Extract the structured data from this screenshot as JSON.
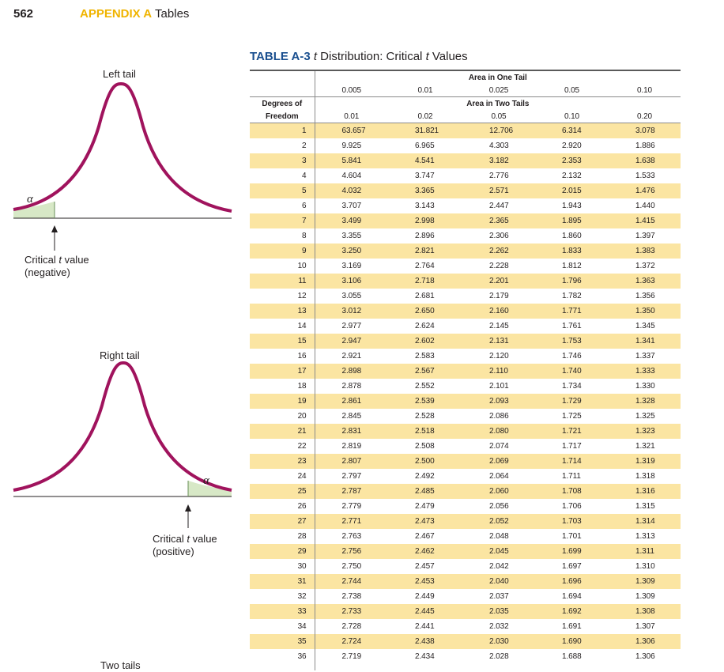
{
  "header": {
    "page_number": "562",
    "appendix_label": "APPENDIX A",
    "appendix_title": "Tables"
  },
  "caption": {
    "label": "TABLE A-3",
    "title_italic": "t",
    "title_rest": " Distribution: Critical ",
    "title_italic2": "t",
    "title_end": " Values"
  },
  "figures": {
    "left": {
      "title": "Left tail",
      "alpha": "α",
      "label_line1_a": "Critical ",
      "label_line1_t": "t",
      "label_line1_b": " value",
      "label_line2": "(negative)"
    },
    "right": {
      "title": "Right tail",
      "alpha": "α",
      "label_line1_a": "Critical ",
      "label_line1_t": "t",
      "label_line1_b": " value",
      "label_line2": "(positive)"
    },
    "two": {
      "title": "Two tails"
    }
  },
  "table": {
    "area_one_tail_label": "Area in One Tail",
    "area_two_tails_label": "Area in Two Tails",
    "df_label_line1": "Degrees of",
    "df_label_line2": "Freedom",
    "one_tail": [
      "0.005",
      "0.01",
      "0.025",
      "0.05",
      "0.10"
    ],
    "two_tails": [
      "0.01",
      "0.02",
      "0.05",
      "0.10",
      "0.20"
    ],
    "rows": [
      [
        "1",
        "63.657",
        "31.821",
        "12.706",
        "6.314",
        "3.078"
      ],
      [
        "2",
        "9.925",
        "6.965",
        "4.303",
        "2.920",
        "1.886"
      ],
      [
        "3",
        "5.841",
        "4.541",
        "3.182",
        "2.353",
        "1.638"
      ],
      [
        "4",
        "4.604",
        "3.747",
        "2.776",
        "2.132",
        "1.533"
      ],
      [
        "5",
        "4.032",
        "3.365",
        "2.571",
        "2.015",
        "1.476"
      ],
      [
        "6",
        "3.707",
        "3.143",
        "2.447",
        "1.943",
        "1.440"
      ],
      [
        "7",
        "3.499",
        "2.998",
        "2.365",
        "1.895",
        "1.415"
      ],
      [
        "8",
        "3.355",
        "2.896",
        "2.306",
        "1.860",
        "1.397"
      ],
      [
        "9",
        "3.250",
        "2.821",
        "2.262",
        "1.833",
        "1.383"
      ],
      [
        "10",
        "3.169",
        "2.764",
        "2.228",
        "1.812",
        "1.372"
      ],
      [
        "11",
        "3.106",
        "2.718",
        "2.201",
        "1.796",
        "1.363"
      ],
      [
        "12",
        "3.055",
        "2.681",
        "2.179",
        "1.782",
        "1.356"
      ],
      [
        "13",
        "3.012",
        "2.650",
        "2.160",
        "1.771",
        "1.350"
      ],
      [
        "14",
        "2.977",
        "2.624",
        "2.145",
        "1.761",
        "1.345"
      ],
      [
        "15",
        "2.947",
        "2.602",
        "2.131",
        "1.753",
        "1.341"
      ],
      [
        "16",
        "2.921",
        "2.583",
        "2.120",
        "1.746",
        "1.337"
      ],
      [
        "17",
        "2.898",
        "2.567",
        "2.110",
        "1.740",
        "1.333"
      ],
      [
        "18",
        "2.878",
        "2.552",
        "2.101",
        "1.734",
        "1.330"
      ],
      [
        "19",
        "2.861",
        "2.539",
        "2.093",
        "1.729",
        "1.328"
      ],
      [
        "20",
        "2.845",
        "2.528",
        "2.086",
        "1.725",
        "1.325"
      ],
      [
        "21",
        "2.831",
        "2.518",
        "2.080",
        "1.721",
        "1.323"
      ],
      [
        "22",
        "2.819",
        "2.508",
        "2.074",
        "1.717",
        "1.321"
      ],
      [
        "23",
        "2.807",
        "2.500",
        "2.069",
        "1.714",
        "1.319"
      ],
      [
        "24",
        "2.797",
        "2.492",
        "2.064",
        "1.711",
        "1.318"
      ],
      [
        "25",
        "2.787",
        "2.485",
        "2.060",
        "1.708",
        "1.316"
      ],
      [
        "26",
        "2.779",
        "2.479",
        "2.056",
        "1.706",
        "1.315"
      ],
      [
        "27",
        "2.771",
        "2.473",
        "2.052",
        "1.703",
        "1.314"
      ],
      [
        "28",
        "2.763",
        "2.467",
        "2.048",
        "1.701",
        "1.313"
      ],
      [
        "29",
        "2.756",
        "2.462",
        "2.045",
        "1.699",
        "1.311"
      ],
      [
        "30",
        "2.750",
        "2.457",
        "2.042",
        "1.697",
        "1.310"
      ],
      [
        "31",
        "2.744",
        "2.453",
        "2.040",
        "1.696",
        "1.309"
      ],
      [
        "32",
        "2.738",
        "2.449",
        "2.037",
        "1.694",
        "1.309"
      ],
      [
        "33",
        "2.733",
        "2.445",
        "2.035",
        "1.692",
        "1.308"
      ],
      [
        "34",
        "2.728",
        "2.441",
        "2.032",
        "1.691",
        "1.307"
      ],
      [
        "35",
        "2.724",
        "2.438",
        "2.030",
        "1.690",
        "1.306"
      ],
      [
        "36",
        "2.719",
        "2.434",
        "2.028",
        "1.688",
        "1.306"
      ]
    ]
  },
  "colors": {
    "curve": "#a0135d",
    "tail_fill": "#d7e8c6",
    "row_shade": "#fbe5a2",
    "caption_blue": "#1a4f8f",
    "appendix_gold": "#f0b400"
  }
}
